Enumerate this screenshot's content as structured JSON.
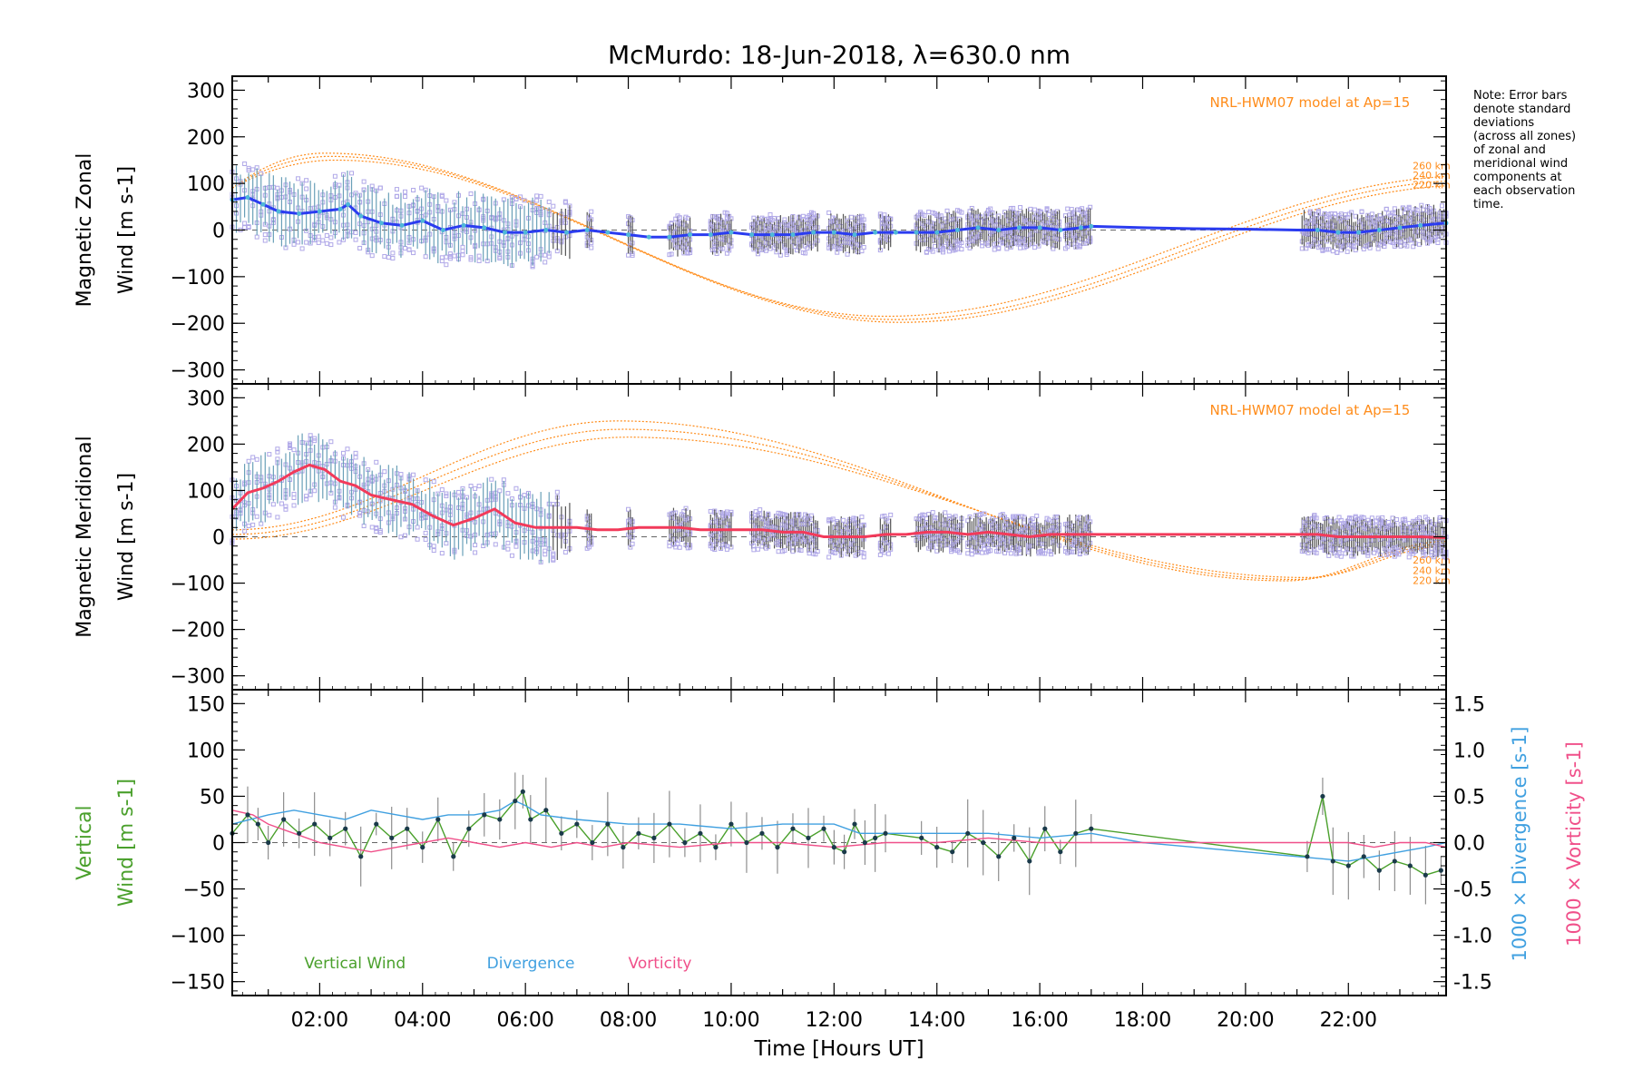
{
  "title": "McMurdo: 18-Jun-2018, λ=630.0 nm",
  "note": [
    "Note: Error bars",
    "denote standard",
    "deviations",
    "(across all zones)",
    "of zonal and",
    "meridional wind",
    "components at",
    "each observation",
    "time."
  ],
  "colors": {
    "zonal": "#2b3cf0",
    "zonal_scatter": "#4fb8d8",
    "meridional": "#f23a5a",
    "model": "#ff8c1a",
    "pts": "#b0a8e8",
    "vertical": "#4aa02c",
    "divergence": "#40a0e0",
    "vorticity": "#f0508a",
    "err": "#555555",
    "dot": "#1a3a4a",
    "axis": "#000000"
  },
  "chart_data": [
    {
      "type": "line",
      "panel": "zonal",
      "ylabel_lines": [
        "Magnetic Zonal",
        "Wind [m s-1]"
      ],
      "yticks": [
        300,
        200,
        100,
        0,
        -100,
        -200,
        -300
      ],
      "ylim": [
        -330,
        330
      ],
      "xlim": [
        0.3,
        23.9
      ],
      "model_label": "NRL-HWM07 model at Ap=15",
      "model_alt_labels": [
        "260 km",
        "240 km",
        "220 km"
      ],
      "series": [
        {
          "name": "zonal wind",
          "x": [
            0.3,
            0.6,
            0.9,
            1.2,
            1.6,
            2.0,
            2.4,
            2.55,
            2.8,
            3.2,
            3.6,
            4.0,
            4.4,
            4.8,
            5.2,
            5.6,
            6.0,
            6.4,
            6.8,
            7.2,
            7.6,
            8.0,
            8.4,
            8.8,
            9.2,
            9.6,
            10.0,
            10.4,
            10.8,
            11.2,
            11.6,
            12.0,
            12.4,
            12.8,
            13.2,
            13.6,
            14.0,
            14.4,
            14.8,
            15.2,
            15.6,
            16.0,
            16.4,
            16.8,
            17.0,
            18.0,
            19.0,
            20.0,
            21.0,
            21.4,
            21.8,
            22.2,
            22.6,
            23.0,
            23.4,
            23.9
          ],
          "values": [
            65,
            70,
            55,
            40,
            35,
            40,
            45,
            55,
            30,
            15,
            10,
            20,
            0,
            10,
            5,
            -5,
            -5,
            0,
            -5,
            0,
            -5,
            -10,
            -15,
            -15,
            -10,
            -10,
            -5,
            -10,
            -10,
            -10,
            -5,
            -5,
            -10,
            -5,
            -5,
            -5,
            -5,
            0,
            5,
            0,
            5,
            5,
            0,
            5,
            8,
            5,
            3,
            2,
            0,
            0,
            -5,
            -5,
            0,
            5,
            10,
            15
          ]
        }
      ],
      "model_curves": [
        {
          "name": "260 km",
          "x_peak": 2.1,
          "peak": 165,
          "x_trough": 13.0,
          "trough": -185,
          "x_end": 23.9,
          "end": 115
        },
        {
          "name": "240 km",
          "x_peak": 2.2,
          "peak": 158,
          "x_trough": 13.2,
          "trough": -192,
          "x_end": 23.9,
          "end": 105
        },
        {
          "name": "220 km",
          "x_peak": 2.3,
          "peak": 150,
          "x_trough": 13.3,
          "trough": -198,
          "x_end": 23.9,
          "end": 95
        }
      ]
    },
    {
      "type": "line",
      "panel": "meridional",
      "ylabel_lines": [
        "Magnetic Meridional",
        "Wind [m s-1]"
      ],
      "yticks": [
        300,
        200,
        100,
        0,
        -100,
        -200,
        -300
      ],
      "ylim": [
        -330,
        330
      ],
      "xlim": [
        0.3,
        23.9
      ],
      "model_label": "NRL-HWM07 model at Ap=15",
      "model_alt_labels": [
        "260 km",
        "240 km",
        "220 km"
      ],
      "series": [
        {
          "name": "meridional wind",
          "x": [
            0.3,
            0.6,
            0.9,
            1.2,
            1.5,
            1.8,
            2.1,
            2.4,
            2.7,
            3.0,
            3.4,
            3.8,
            4.2,
            4.6,
            5.0,
            5.4,
            5.8,
            6.2,
            6.6,
            7.0,
            7.4,
            7.8,
            8.2,
            8.6,
            9.0,
            9.4,
            9.8,
            10.2,
            10.6,
            11.0,
            11.4,
            11.8,
            12.2,
            12.6,
            13.0,
            13.4,
            13.8,
            14.2,
            14.6,
            15.0,
            15.4,
            15.8,
            16.2,
            16.6,
            17.0,
            18.0,
            19.0,
            20.0,
            21.0,
            21.4,
            21.8,
            22.2,
            22.6,
            23.0,
            23.4,
            23.9
          ],
          "values": [
            60,
            95,
            105,
            120,
            140,
            155,
            145,
            120,
            110,
            90,
            80,
            70,
            45,
            25,
            40,
            60,
            30,
            20,
            20,
            20,
            15,
            15,
            20,
            20,
            20,
            15,
            15,
            15,
            15,
            10,
            10,
            0,
            0,
            0,
            5,
            5,
            10,
            10,
            5,
            10,
            5,
            0,
            5,
            5,
            5,
            5,
            5,
            5,
            5,
            5,
            0,
            0,
            0,
            0,
            0,
            -2
          ]
        }
      ],
      "model_curves": [
        {
          "name": "260 km",
          "x_start": 0.3,
          "start": 15,
          "x_peak": 7.8,
          "peak": 250,
          "x_trough": 20.8,
          "trough": -95,
          "x_end": 23.9,
          "end": -10
        },
        {
          "name": "240 km",
          "x_start": 0.3,
          "start": 5,
          "x_peak": 7.9,
          "peak": 232,
          "x_trough": 21.0,
          "trough": -92,
          "x_end": 23.9,
          "end": -15
        },
        {
          "name": "220 km",
          "x_start": 0.3,
          "start": -5,
          "x_peak": 8.0,
          "peak": 215,
          "x_trough": 21.2,
          "trough": -88,
          "x_end": 23.9,
          "end": -20
        }
      ]
    },
    {
      "type": "line",
      "panel": "vertical",
      "ylabel_lines": [
        "Vertical",
        "Wind [m s-1]"
      ],
      "yticks": [
        150,
        100,
        50,
        0,
        -50,
        -100,
        -150
      ],
      "ylim": [
        -165,
        165
      ],
      "xlim": [
        0.3,
        23.9
      ],
      "y2ticks": [
        "1.5",
        "1.0",
        "0.5",
        "0.0",
        "-0.5",
        "-1.0",
        "-1.5"
      ],
      "y2labels": [
        "1000 × Divergence [s-1]",
        "1000 × Vorticity [s-1]"
      ],
      "xlabel": "Time [Hours UT]",
      "xticks": [
        "02:00",
        "04:00",
        "06:00",
        "08:00",
        "10:00",
        "12:00",
        "14:00",
        "16:00",
        "18:00",
        "20:00",
        "22:00"
      ],
      "xtick_values": [
        2,
        4,
        6,
        8,
        10,
        12,
        14,
        16,
        18,
        20,
        22
      ],
      "legend": [
        "Vertical Wind",
        "Divergence",
        "Vorticity"
      ],
      "series": [
        {
          "name": "Vertical Wind",
          "x": [
            0.3,
            0.6,
            0.8,
            1.0,
            1.3,
            1.6,
            1.9,
            2.2,
            2.5,
            2.8,
            3.1,
            3.4,
            3.7,
            4.0,
            4.3,
            4.6,
            4.9,
            5.2,
            5.5,
            5.8,
            5.95,
            6.1,
            6.4,
            6.7,
            7.0,
            7.3,
            7.6,
            7.9,
            8.2,
            8.5,
            8.8,
            9.1,
            9.4,
            9.7,
            10.0,
            10.3,
            10.6,
            10.9,
            11.2,
            11.5,
            11.8,
            12.0,
            12.2,
            12.4,
            12.6,
            12.8,
            13.0,
            13.7,
            14.0,
            14.3,
            14.6,
            14.9,
            15.2,
            15.5,
            15.8,
            16.1,
            16.4,
            16.7,
            17.0,
            21.2,
            21.5,
            21.7,
            22.0,
            22.3,
            22.6,
            22.9,
            23.2,
            23.5,
            23.8
          ],
          "values": [
            10,
            30,
            20,
            0,
            25,
            10,
            20,
            5,
            15,
            -15,
            20,
            5,
            15,
            -5,
            25,
            -15,
            15,
            30,
            25,
            45,
            55,
            25,
            35,
            10,
            20,
            0,
            20,
            -5,
            10,
            5,
            20,
            0,
            10,
            -5,
            20,
            0,
            10,
            -5,
            15,
            5,
            15,
            -5,
            -10,
            20,
            0,
            5,
            10,
            5,
            -5,
            -10,
            10,
            0,
            -15,
            5,
            -20,
            15,
            -10,
            10,
            15,
            -15,
            50,
            -20,
            -25,
            -15,
            -30,
            -20,
            -25,
            -35,
            -30
          ]
        },
        {
          "name": "Divergence",
          "x": [
            0.3,
            1.0,
            1.5,
            2.0,
            2.5,
            3.0,
            3.5,
            4.0,
            4.5,
            5.0,
            5.5,
            5.8,
            6.0,
            6.3,
            7.0,
            8.0,
            9.0,
            10.0,
            11.0,
            12.0,
            12.5,
            13.0,
            14.0,
            15.0,
            16.0,
            17.0,
            18.0,
            19.0,
            20.0,
            21.0,
            22.0,
            22.5,
            23.0,
            23.5,
            23.9
          ],
          "values": [
            0.2,
            0.3,
            0.35,
            0.3,
            0.25,
            0.35,
            0.3,
            0.25,
            0.3,
            0.3,
            0.35,
            0.45,
            0.4,
            0.3,
            0.25,
            0.2,
            0.2,
            0.15,
            0.2,
            0.2,
            0.1,
            0.1,
            0.1,
            0.1,
            0.05,
            0.1,
            0.0,
            -0.05,
            -0.1,
            -0.15,
            -0.2,
            -0.15,
            -0.1,
            -0.05,
            0.0
          ]
        },
        {
          "name": "Vorticity",
          "x": [
            0.3,
            0.7,
            1.0,
            1.5,
            2.0,
            2.5,
            3.0,
            3.5,
            4.0,
            4.5,
            5.0,
            5.5,
            6.0,
            6.5,
            7.0,
            7.5,
            8.0,
            9.0,
            10.0,
            11.0,
            12.0,
            13.0,
            14.0,
            15.0,
            16.0,
            17.0,
            18.0,
            19.0,
            20.0,
            21.0,
            21.5,
            22.0,
            22.5,
            23.0,
            23.5,
            23.9
          ],
          "values": [
            0.35,
            0.3,
            0.2,
            0.1,
            0.0,
            -0.05,
            -0.1,
            -0.05,
            0.0,
            0.05,
            0.0,
            -0.05,
            0.0,
            -0.05,
            0.0,
            -0.05,
            0.0,
            -0.05,
            0.0,
            0.0,
            -0.05,
            0.0,
            0.0,
            0.05,
            0.0,
            0.0,
            0.0,
            0.0,
            0.0,
            0.0,
            0.0,
            0.0,
            -0.05,
            0.0,
            0.0,
            -0.05
          ]
        }
      ]
    }
  ]
}
